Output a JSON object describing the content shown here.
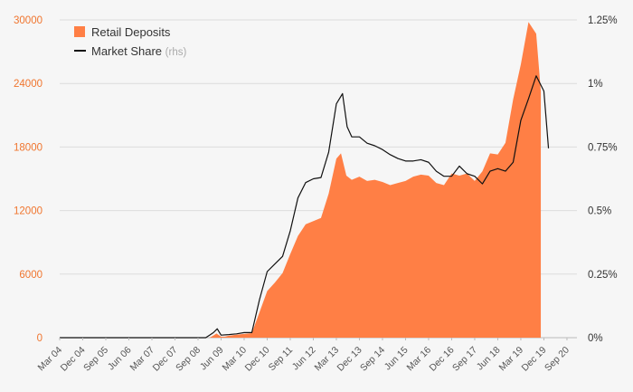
{
  "chart_data": {
    "type": "area",
    "legend": {
      "placement": "top-left",
      "entries": [
        {
          "label": "Retail Deposits",
          "suffix": "",
          "color": "#ff7f45",
          "kind": "area"
        },
        {
          "label": "Market Share",
          "suffix": "(rhs)",
          "color": "#111111",
          "kind": "line"
        }
      ]
    },
    "y_left": {
      "ticks": [
        "0",
        "6000",
        "12000",
        "18000",
        "24000",
        "30000"
      ],
      "range": [
        0,
        30000
      ],
      "tick_color": "#f0752e"
    },
    "y_right": {
      "ticks": [
        "0%",
        "0.25%",
        "0.5%",
        "0.75%",
        "1%",
        "1.25%"
      ],
      "range": [
        0,
        1.25
      ],
      "unit": "%"
    },
    "x_ticks": [
      "Mar 04",
      "Dec 04",
      "Sep 05",
      "Jun 06",
      "Mar 07",
      "Dec 07",
      "Sep 08",
      "Jun 09",
      "Mar 10",
      "Dec 10",
      "Sep 11",
      "Jun 12",
      "Mar 13",
      "Dec 13",
      "Sep 14",
      "Jun 15",
      "Mar 16",
      "Dec 16",
      "Sep 17",
      "Jun 18",
      "Mar 19",
      "Dec 19",
      "Sep 20"
    ],
    "x_range": [
      0,
      67.3
    ],
    "grid": true,
    "series": [
      {
        "name": "Retail Deposits",
        "axis": "left",
        "color": "#ff7f45",
        "points": [
          [
            0,
            0
          ],
          [
            1,
            0
          ],
          [
            2,
            0
          ],
          [
            3,
            0
          ],
          [
            4,
            0
          ],
          [
            5,
            0
          ],
          [
            6,
            0
          ],
          [
            7,
            0
          ],
          [
            8,
            0
          ],
          [
            9,
            0
          ],
          [
            10,
            0
          ],
          [
            11,
            0
          ],
          [
            12,
            0
          ],
          [
            13,
            0
          ],
          [
            14,
            0
          ],
          [
            15,
            0
          ],
          [
            16,
            0
          ],
          [
            17,
            0
          ],
          [
            18,
            0
          ],
          [
            19,
            0
          ],
          [
            19.5,
            0
          ],
          [
            20,
            200
          ],
          [
            20.4,
            400
          ],
          [
            21,
            100
          ],
          [
            21.5,
            100
          ],
          [
            22,
            180
          ],
          [
            23,
            280
          ],
          [
            24,
            350
          ],
          [
            25,
            430
          ],
          [
            26,
            2400
          ],
          [
            27,
            4400
          ],
          [
            28,
            5200
          ],
          [
            29,
            6100
          ],
          [
            30,
            7900
          ],
          [
            31,
            9600
          ],
          [
            32,
            10700
          ],
          [
            33,
            11000
          ],
          [
            34,
            11300
          ],
          [
            35,
            13600
          ],
          [
            36,
            16900
          ],
          [
            36.6,
            17400
          ],
          [
            37.3,
            15300
          ],
          [
            38,
            14900
          ],
          [
            39,
            15200
          ],
          [
            40,
            14800
          ],
          [
            41,
            14900
          ],
          [
            42,
            14700
          ],
          [
            43,
            14400
          ],
          [
            44,
            14600
          ],
          [
            45,
            14800
          ],
          [
            46,
            15200
          ],
          [
            47,
            15400
          ],
          [
            48,
            15300
          ],
          [
            49,
            14600
          ],
          [
            50,
            14400
          ],
          [
            51,
            15500
          ],
          [
            52,
            15300
          ],
          [
            53,
            15500
          ],
          [
            54,
            14800
          ],
          [
            55,
            15700
          ],
          [
            56,
            17400
          ],
          [
            57,
            17300
          ],
          [
            58,
            18400
          ],
          [
            59,
            22500
          ],
          [
            60,
            25800
          ],
          [
            61,
            29800
          ],
          [
            62,
            28700
          ],
          [
            62.6,
            23300
          ]
        ]
      },
      {
        "name": "Market Share",
        "axis": "right",
        "color": "#111111",
        "points": [
          [
            0,
            0
          ],
          [
            1,
            0
          ],
          [
            2,
            0
          ],
          [
            3,
            0
          ],
          [
            4,
            0
          ],
          [
            5,
            0
          ],
          [
            6,
            0
          ],
          [
            7,
            0
          ],
          [
            8,
            0
          ],
          [
            9,
            0
          ],
          [
            10,
            0
          ],
          [
            11,
            0
          ],
          [
            12,
            0
          ],
          [
            13,
            0
          ],
          [
            14,
            0
          ],
          [
            15,
            0
          ],
          [
            16,
            0
          ],
          [
            17,
            0
          ],
          [
            18,
            0
          ],
          [
            19,
            0
          ],
          [
            19.5,
            0.01
          ],
          [
            20,
            0.02
          ],
          [
            20.5,
            0.035
          ],
          [
            21,
            0.01
          ],
          [
            22,
            0.012
          ],
          [
            23,
            0.015
          ],
          [
            24,
            0.02
          ],
          [
            25,
            0.02
          ],
          [
            26,
            0.15
          ],
          [
            27,
            0.26
          ],
          [
            28,
            0.29
          ],
          [
            29,
            0.32
          ],
          [
            30,
            0.42
          ],
          [
            31,
            0.55
          ],
          [
            32,
            0.61
          ],
          [
            33,
            0.625
          ],
          [
            34,
            0.63
          ],
          [
            35,
            0.73
          ],
          [
            36,
            0.92
          ],
          [
            36.8,
            0.96
          ],
          [
            37.4,
            0.83
          ],
          [
            38,
            0.79
          ],
          [
            39,
            0.79
          ],
          [
            40,
            0.765
          ],
          [
            41,
            0.755
          ],
          [
            42,
            0.74
          ],
          [
            43,
            0.72
          ],
          [
            44,
            0.705
          ],
          [
            45,
            0.695
          ],
          [
            46,
            0.695
          ],
          [
            47,
            0.7
          ],
          [
            48,
            0.69
          ],
          [
            49,
            0.655
          ],
          [
            50,
            0.635
          ],
          [
            51,
            0.635
          ],
          [
            52,
            0.675
          ],
          [
            53,
            0.645
          ],
          [
            54,
            0.635
          ],
          [
            55,
            0.605
          ],
          [
            56,
            0.655
          ],
          [
            57,
            0.665
          ],
          [
            58,
            0.655
          ],
          [
            59,
            0.69
          ],
          [
            60,
            0.855
          ],
          [
            61,
            0.94
          ],
          [
            62,
            1.03
          ],
          [
            63,
            0.97
          ],
          [
            63.6,
            0.745
          ]
        ]
      }
    ]
  }
}
